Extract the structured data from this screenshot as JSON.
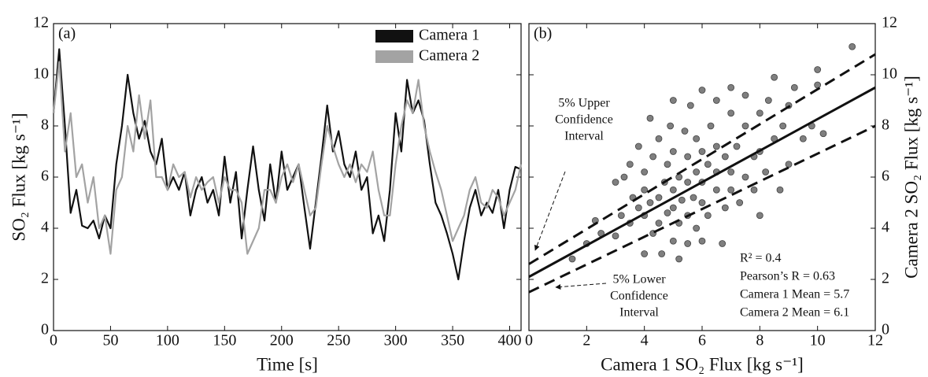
{
  "chart_data": [
    {
      "type": "line",
      "panel_label": "(a)",
      "xlabel": "Time [s]",
      "ylabel": "SO₂ Flux [kg s⁻¹]",
      "xlim": [
        0,
        410
      ],
      "ylim": [
        0,
        12
      ],
      "xticks": [
        0,
        50,
        100,
        150,
        200,
        250,
        300,
        350,
        400
      ],
      "yticks": [
        0,
        2,
        4,
        6,
        8,
        10,
        12
      ],
      "x": [
        0,
        5,
        10,
        15,
        20,
        25,
        30,
        35,
        40,
        45,
        50,
        55,
        60,
        65,
        70,
        75,
        80,
        85,
        90,
        95,
        100,
        105,
        110,
        115,
        120,
        125,
        130,
        135,
        140,
        145,
        150,
        155,
        160,
        165,
        170,
        175,
        180,
        185,
        190,
        195,
        200,
        205,
        210,
        215,
        220,
        225,
        230,
        235,
        240,
        245,
        250,
        255,
        260,
        265,
        270,
        275,
        280,
        285,
        290,
        295,
        300,
        305,
        310,
        315,
        320,
        325,
        330,
        335,
        340,
        345,
        350,
        355,
        360,
        365,
        370,
        375,
        380,
        385,
        390,
        395,
        400,
        405,
        410
      ],
      "series": [
        {
          "name": "Camera 1",
          "color": "#111111",
          "values": [
            8.5,
            11.0,
            8,
            4.6,
            5.5,
            4.1,
            4.0,
            4.3,
            3.6,
            4.5,
            4.0,
            6.5,
            8,
            10.0,
            8.5,
            7.5,
            8.2,
            7.0,
            6.5,
            7.5,
            5.5,
            6.0,
            5.5,
            6.2,
            4.5,
            5.5,
            6.0,
            5.0,
            5.5,
            4.5,
            6.8,
            5.0,
            6.2,
            3.6,
            5.5,
            7.2,
            5.5,
            4.3,
            6.5,
            5.0,
            7.0,
            5.5,
            6.0,
            6.5,
            4.8,
            3.2,
            5.0,
            6.8,
            8.8,
            7.0,
            7.8,
            6.5,
            6.0,
            7.0,
            5.5,
            6.0,
            3.8,
            4.5,
            3.5,
            5.5,
            8.5,
            7.0,
            9.8,
            8.5,
            9.0,
            8.2,
            6.5,
            5.0,
            4.5,
            3.8,
            3.0,
            2.0,
            3.5,
            4.8,
            5.5,
            4.5,
            5.0,
            4.6,
            5.5,
            4.0,
            5.5,
            6.4,
            6.3
          ]
        },
        {
          "name": "Camera 2",
          "color": "#a3a3a3",
          "values": [
            8.5,
            10.5,
            7,
            8.5,
            6,
            6.5,
            5,
            6,
            4,
            4.5,
            3.0,
            5.5,
            6,
            8,
            7,
            9.2,
            7.5,
            9,
            6,
            6,
            5.5,
            6.5,
            6,
            6.2,
            5.2,
            6,
            5.5,
            5.8,
            6,
            5,
            6,
            5.5,
            5.5,
            5.0,
            3.0,
            3.5,
            4,
            5.5,
            5.5,
            5.0,
            6,
            6.5,
            5.8,
            6.5,
            5.5,
            4.5,
            4.8,
            6.5,
            8,
            7.2,
            6.5,
            6,
            6.5,
            5.8,
            6.5,
            6.2,
            7,
            5.5,
            4.5,
            4.5,
            6.5,
            8,
            9,
            8.5,
            9.8,
            8,
            7,
            6.2,
            5.5,
            4.5,
            3.5,
            4.0,
            4.5,
            5.5,
            6,
            5,
            4.8,
            5.5,
            5.2,
            4.5,
            5,
            5.5,
            6.5
          ]
        }
      ]
    },
    {
      "type": "scatter",
      "panel_label": "(b)",
      "xlabel": "Camera 1 SO₂ Flux [kg s⁻¹]",
      "ylabel": "Camera 2 SO₂ Flux [kg s⁻¹]",
      "xlim": [
        0,
        12
      ],
      "ylim": [
        0,
        12
      ],
      "xticks": [
        0,
        2,
        4,
        6,
        8,
        10,
        12
      ],
      "yticks": [
        0,
        2,
        4,
        6,
        8,
        10,
        12
      ],
      "y_axis_side": "right",
      "color": "#7f7f7f",
      "x": [
        2,
        2.5,
        3,
        3.2,
        3.5,
        3.5,
        3.6,
        3.8,
        3.8,
        4,
        4,
        4,
        4,
        4.2,
        4.2,
        4.3,
        4.3,
        4.5,
        4.5,
        4.5,
        4.6,
        4.7,
        4.8,
        4.8,
        4.9,
        5,
        5,
        5,
        5,
        5,
        5.2,
        5.2,
        5.2,
        5.3,
        5.4,
        5.5,
        5.5,
        5.5,
        5.5,
        5.6,
        5.7,
        5.8,
        5.8,
        5.8,
        6,
        6,
        6,
        6,
        6,
        6.2,
        6.2,
        6.3,
        6.5,
        6.5,
        6.5,
        6.5,
        6.7,
        6.8,
        6.8,
        7,
        7,
        7,
        7,
        7.2,
        7.3,
        7.5,
        7.5,
        7.5,
        7.8,
        7.8,
        8,
        8,
        8,
        8.2,
        8.3,
        8.5,
        8.5,
        8.7,
        8.8,
        9,
        9,
        9.2,
        9.5,
        9.8,
        10,
        10,
        10.2,
        11.2,
        1.5,
        2.3,
        3.0,
        3.3
      ],
      "y": [
        3.4,
        3.8,
        3.7,
        4.5,
        4.2,
        6.5,
        5.2,
        4.8,
        7.2,
        3.0,
        4.5,
        5.5,
        6.2,
        5.0,
        8.3,
        3.8,
        6.8,
        4.2,
        5.2,
        7.5,
        3.0,
        5.8,
        4.6,
        6.5,
        8.0,
        3.5,
        4.8,
        5.5,
        7.0,
        9.0,
        2.8,
        4.2,
        6.0,
        5.1,
        7.8,
        3.4,
        4.5,
        5.8,
        6.8,
        8.8,
        5.2,
        4.0,
        6.2,
        7.5,
        3.5,
        5.0,
        5.8,
        7.0,
        9.4,
        4.5,
        6.5,
        8.0,
        5.5,
        6.2,
        7.2,
        9.0,
        3.4,
        4.8,
        6.8,
        5.5,
        6.2,
        8.5,
        9.5,
        7.2,
        5.0,
        6.0,
        8.0,
        9.2,
        6.8,
        5.5,
        7.0,
        8.5,
        4.5,
        6.2,
        9.0,
        7.5,
        9.9,
        5.5,
        8.0,
        6.5,
        8.8,
        9.5,
        7.5,
        8.0,
        10.2,
        9.6,
        7.7,
        11.1,
        2.8,
        4.3,
        5.8,
        6.0
      ],
      "fit": {
        "x": [
          0,
          12
        ],
        "y": [
          2.1,
          9.5
        ]
      },
      "bounds": [
        {
          "label": [
            "5% Upper",
            "Confidence",
            "Interval"
          ],
          "x": [
            0,
            12
          ],
          "y": [
            2.6,
            10.8
          ]
        },
        {
          "label": [
            "5% Lower",
            "Confidence",
            "Interval"
          ],
          "x": [
            0,
            12
          ],
          "y": [
            1.5,
            8.0
          ]
        }
      ],
      "stats": [
        "R² = 0.4",
        "Pearson’s R = 0.63",
        "Camera 1 Mean = 5.7",
        "Camera 2 Mean = 6.1"
      ]
    }
  ]
}
